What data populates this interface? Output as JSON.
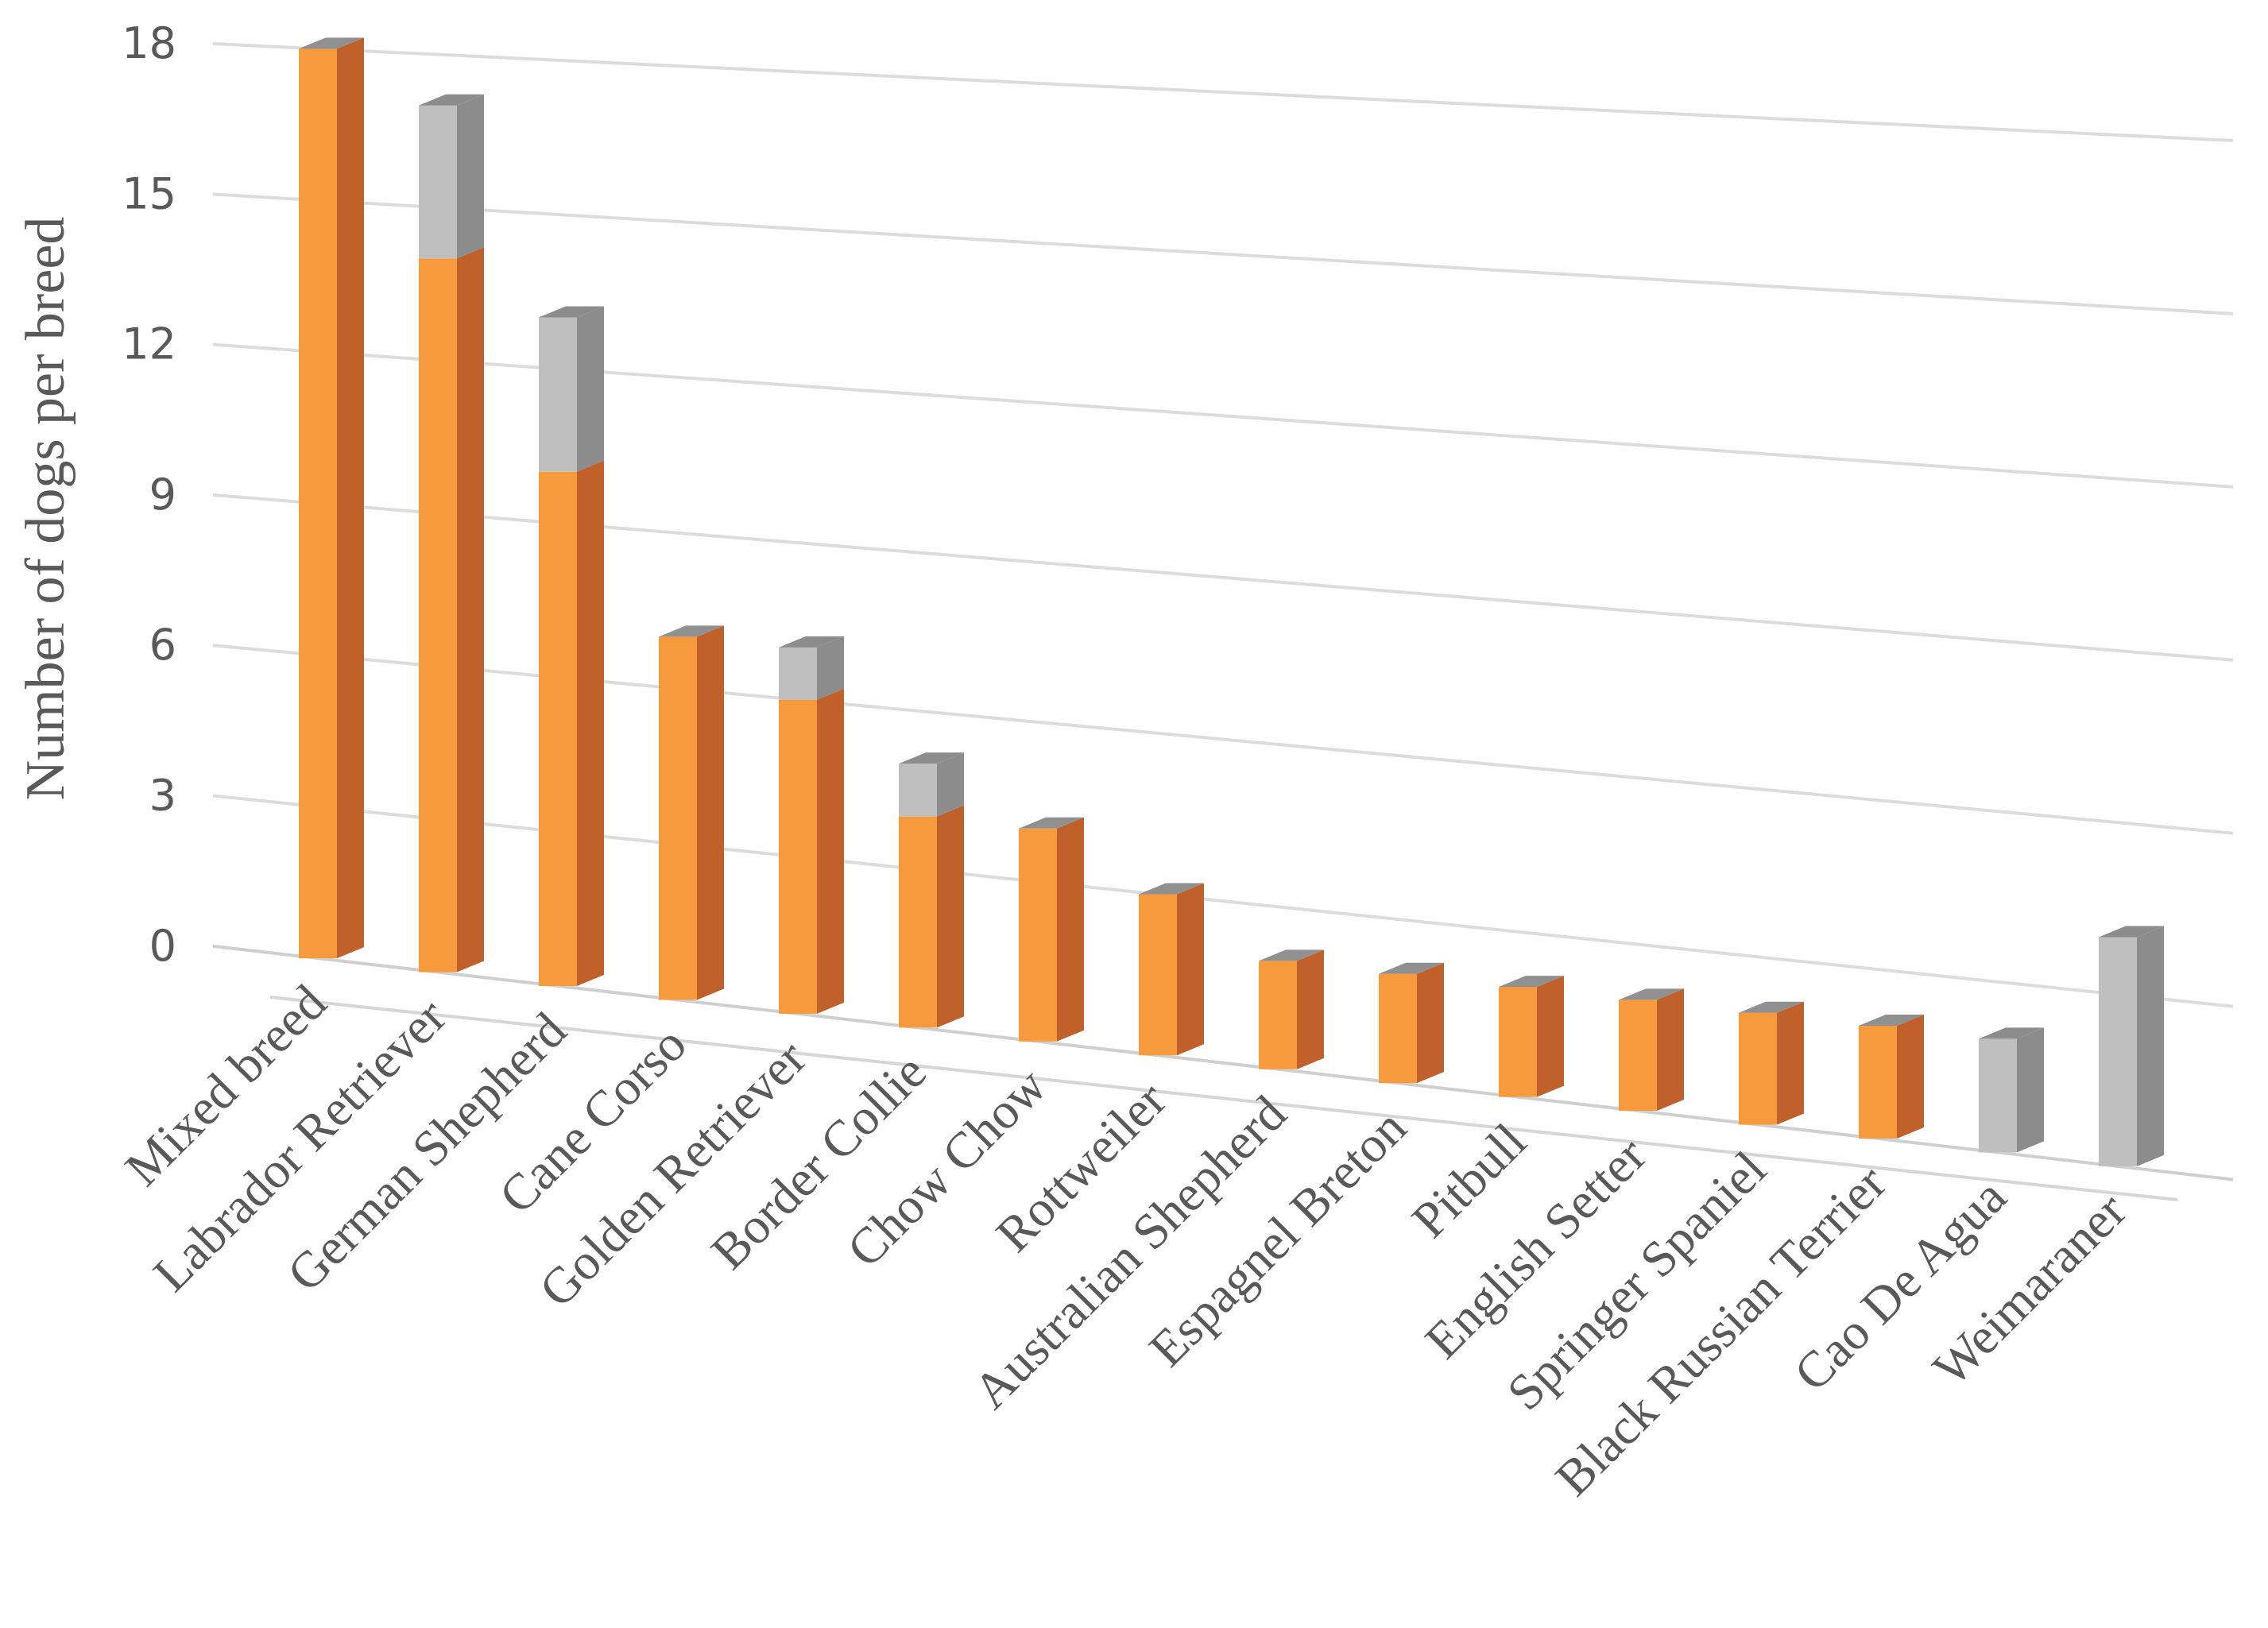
{
  "chart_data": {
    "type": "bar",
    "stacked": true,
    "three_d": true,
    "title": "",
    "xlabel": "",
    "ylabel": "Number of dogs per breed",
    "ylim": [
      0,
      18
    ],
    "yticks": [
      0,
      3,
      6,
      9,
      12,
      15,
      18
    ],
    "grid": true,
    "legend": "none",
    "categories": [
      "Mixed breed",
      "Labrador Retriever",
      "German Shepherd",
      "Cane Corso",
      "Golden Retriever",
      "Border Collie",
      "Chow Chow",
      "Rottweiler",
      "Australian Shepherd",
      "Espagnel Breton",
      "Pitbull",
      "English Setter",
      "Springer Spaniel",
      "Black Russian Terrier",
      "Cao De Agua",
      "Weimaraner"
    ],
    "series": [
      {
        "values": [
          18,
          14,
          10,
          7,
          6,
          4,
          4,
          3,
          2,
          2,
          2,
          2,
          2,
          2,
          0,
          0
        ],
        "color": "#F79A3E",
        "side_color": "#C0612B",
        "top_color": "#909090"
      },
      {
        "values": [
          0,
          3,
          3,
          0,
          1,
          1,
          0,
          0,
          0,
          0,
          0,
          0,
          0,
          0,
          2,
          4
        ],
        "color": "#BFBFBF",
        "side_color": "#8C8C8C",
        "top_color": "#8C8C8C"
      }
    ]
  }
}
